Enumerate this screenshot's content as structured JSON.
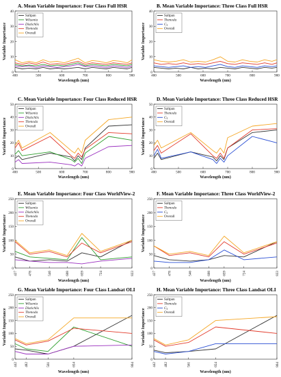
{
  "figure": {
    "panels": [
      {
        "letter": "A.",
        "title": "Mean Variable Importance: Four Class Full HSR"
      },
      {
        "letter": "B.",
        "title": "Mean Variable Importance: Three Class Full HSR"
      },
      {
        "letter": "C.",
        "title": "Mean Variable Importance: Four Class Reduced HSR"
      },
      {
        "letter": "D.",
        "title": "Mean Variable Importance: Three Class Reduced HSR"
      },
      {
        "letter": "E.",
        "title": "Mean Variable Importance: Four Class WorldView-2"
      },
      {
        "letter": "F.",
        "title": "Mean Variable Importance: Three Class WorldView-2"
      },
      {
        "letter": "G.",
        "title": "Mean Variable Importance: Four Class Landsat OLI"
      },
      {
        "letter": "H.",
        "title": "Mean Variable Importance: Three Class Landsat OLI"
      }
    ],
    "series_colors": {
      "Saltpan": "#333333",
      "Wilsonia": "#2e9e2e",
      "Distichlis": "#9a2fbf",
      "Thenoda": "#e23a2a",
      "C3": "#2a4fd4",
      "Overall": "#f5a623"
    },
    "italic_series": [
      "Wilsonia",
      "Distichlis",
      "Thenoda"
    ]
  },
  "chart_data": [
    {
      "type": "line",
      "title": "Mean Variable Importance: Four Class Full HSR",
      "xlabel": "Wavelength (nm)",
      "ylabel": "Variable Importance",
      "xlim": [
        400,
        900
      ],
      "ylim": [
        0,
        40
      ],
      "xticks": [
        400,
        500,
        600,
        700,
        800,
        900
      ],
      "yticks": [
        0,
        10,
        20,
        30,
        40
      ],
      "legend": "top-left",
      "x": [
        400,
        430,
        460,
        490,
        520,
        550,
        580,
        610,
        640,
        670,
        700,
        730,
        760,
        790,
        820,
        850,
        880,
        900
      ],
      "series": [
        {
          "name": "Saltpan",
          "values": [
            3,
            2,
            2.5,
            2,
            3,
            2,
            2.5,
            2,
            2.5,
            3,
            2,
            3,
            2.5,
            2,
            3,
            2.5,
            2,
            3
          ]
        },
        {
          "name": "Wilsonia",
          "values": [
            5,
            4,
            4.5,
            4,
            5,
            4,
            4.5,
            4,
            5,
            6,
            4,
            5,
            4.5,
            4,
            5,
            4.5,
            4,
            5
          ]
        },
        {
          "name": "Distichlis",
          "values": [
            4,
            3.5,
            4,
            3,
            4,
            3.5,
            3,
            3.5,
            4,
            5,
            3.5,
            4,
            3.5,
            3,
            4,
            3.5,
            3,
            4
          ]
        },
        {
          "name": "Thenoda",
          "values": [
            6,
            5,
            6,
            5,
            6.5,
            5,
            5.5,
            5,
            6,
            7,
            5,
            6,
            5.5,
            5,
            6,
            5.5,
            5,
            6
          ]
        },
        {
          "name": "Overall",
          "values": [
            8,
            6,
            7,
            6,
            8,
            6.5,
            7,
            6,
            7.5,
            9,
            6,
            7.5,
            7,
            6,
            7.5,
            7,
            6,
            8
          ]
        }
      ]
    },
    {
      "type": "line",
      "title": "Mean Variable Importance: Three Class Full HSR",
      "xlabel": "Wavelength (nm)",
      "ylabel": "Variable Importance",
      "xlim": [
        400,
        900
      ],
      "ylim": [
        0,
        40
      ],
      "xticks": [
        400,
        500,
        600,
        700,
        800,
        900
      ],
      "yticks": [
        0,
        10,
        20,
        30,
        40
      ],
      "legend": "top-left",
      "x": [
        400,
        430,
        460,
        490,
        520,
        550,
        580,
        610,
        640,
        670,
        700,
        730,
        760,
        790,
        820,
        850,
        880,
        900
      ],
      "series": [
        {
          "name": "Saltpan",
          "values": [
            3,
            2.5,
            2,
            2.5,
            2,
            3,
            2,
            2.5,
            2,
            3,
            2.5,
            2,
            3,
            2.5,
            2,
            3,
            2.5,
            3
          ]
        },
        {
          "name": "Thenoda",
          "values": [
            6,
            5,
            5.5,
            5,
            6,
            5,
            5.5,
            5,
            6,
            7,
            5.5,
            5,
            6,
            5.5,
            5,
            6,
            5,
            6
          ]
        },
        {
          "name": "C3",
          "values": [
            4,
            3.5,
            3,
            3.5,
            4,
            3,
            3.5,
            3,
            4,
            5,
            3.5,
            3,
            4,
            3.5,
            3,
            4,
            3.5,
            4
          ]
        },
        {
          "name": "Overall",
          "values": [
            8,
            7,
            6.5,
            7,
            8,
            6.5,
            7,
            6.5,
            8,
            10,
            7,
            6.5,
            8,
            7,
            6.5,
            8,
            7,
            8
          ]
        }
      ]
    },
    {
      "type": "line",
      "title": "Mean Variable Importance: Four Class Reduced HSR",
      "xlabel": "Wavelength (nm)",
      "ylabel": "Variable Importance",
      "xlim": [
        400,
        900
      ],
      "ylim": [
        0,
        50
      ],
      "xticks": [
        400,
        500,
        600,
        700,
        800,
        900
      ],
      "yticks": [
        0,
        10,
        20,
        30,
        40,
        50
      ],
      "legend": "top-left",
      "x": [
        400,
        415,
        430,
        550,
        640,
        655,
        670,
        685,
        700,
        800,
        900
      ],
      "series": [
        {
          "name": "Saltpan",
          "values": [
            8,
            10,
            7,
            12,
            9,
            6,
            10,
            7,
            16,
            33,
            34
          ]
        },
        {
          "name": "Wilsonia",
          "values": [
            11,
            14,
            10,
            13,
            7,
            5,
            8,
            4,
            12,
            25,
            22
          ]
        },
        {
          "name": "Distichlis",
          "values": [
            5,
            7,
            4,
            5,
            3,
            2,
            4,
            2,
            8,
            17,
            18
          ]
        },
        {
          "name": "Thenoda",
          "values": [
            16,
            20,
            14,
            25,
            10,
            8,
            12,
            9,
            15,
            28,
            27
          ]
        },
        {
          "name": "Overall",
          "values": [
            18,
            22,
            16,
            28,
            14,
            12,
            16,
            12,
            22,
            38,
            40
          ]
        }
      ]
    },
    {
      "type": "line",
      "title": "Mean Variable Importance: Three Class Reduced HSR",
      "xlabel": "Wavelength (nm)",
      "ylabel": "Variable Importance",
      "xlim": [
        400,
        900
      ],
      "ylim": [
        0,
        50
      ],
      "xticks": [
        400,
        500,
        600,
        700,
        800,
        900
      ],
      "yticks": [
        0,
        10,
        20,
        30,
        40,
        50
      ],
      "legend": "top-left",
      "x": [
        400,
        415,
        430,
        550,
        640,
        655,
        670,
        685,
        700,
        800,
        900
      ],
      "series": [
        {
          "name": "Saltpan",
          "values": [
            8,
            12,
            7,
            13,
            9,
            6,
            10,
            7,
            16,
            28,
            30
          ]
        },
        {
          "name": "Thenoda",
          "values": [
            14,
            18,
            12,
            27,
            10,
            8,
            12,
            8,
            16,
            30,
            31
          ]
        },
        {
          "name": "C3",
          "values": [
            10,
            15,
            8,
            13,
            7,
            4,
            8,
            5,
            10,
            25,
            20
          ]
        },
        {
          "name": "Overall",
          "values": [
            18,
            22,
            16,
            28,
            14,
            12,
            16,
            12,
            24,
            33,
            35
          ]
        }
      ]
    },
    {
      "type": "line",
      "title": "Mean Variable Importance: Four Class WorldView-2",
      "xlabel": "Wavelength (nm)",
      "ylabel": "Variable Importance",
      "xlim": [
        427,
        833
      ],
      "ylim": [
        0,
        250
      ],
      "xticks": [
        427,
        478,
        546,
        608,
        659,
        724,
        833
      ],
      "yticks": [
        0,
        50,
        100,
        150,
        200,
        250
      ],
      "legend": "top-left",
      "x": [
        427,
        478,
        546,
        608,
        659,
        724,
        833
      ],
      "series": [
        {
          "name": "Saltpan",
          "values": [
            40,
            25,
            30,
            25,
            55,
            40,
            100
          ]
        },
        {
          "name": "Wilsonia",
          "values": [
            60,
            40,
            35,
            30,
            110,
            30,
            40
          ]
        },
        {
          "name": "Distichlis",
          "values": [
            30,
            25,
            20,
            20,
            15,
            25,
            35
          ]
        },
        {
          "name": "Thenoda",
          "values": [
            95,
            50,
            60,
            40,
            90,
            55,
            95
          ]
        },
        {
          "name": "Overall",
          "values": [
            100,
            55,
            65,
            45,
            125,
            60,
            100
          ]
        }
      ]
    },
    {
      "type": "line",
      "title": "Mean Variable Importance: Three Class WorldView-2",
      "xlabel": "Wavelength (nm)",
      "ylabel": "Variable Importance",
      "xlim": [
        427,
        833
      ],
      "ylim": [
        0,
        250
      ],
      "xticks": [
        427,
        478,
        546,
        608,
        659,
        724,
        833
      ],
      "yticks": [
        0,
        50,
        100,
        150,
        200,
        250
      ],
      "legend": "top-left",
      "x": [
        427,
        478,
        546,
        608,
        659,
        724,
        833
      ],
      "series": [
        {
          "name": "Saltpan",
          "values": [
            45,
            30,
            25,
            30,
            45,
            40,
            95
          ]
        },
        {
          "name": "Thenoda",
          "values": [
            80,
            45,
            55,
            40,
            95,
            50,
            90
          ]
        },
        {
          "name": "C3",
          "values": [
            25,
            20,
            20,
            30,
            65,
            30,
            40
          ]
        },
        {
          "name": "Overall",
          "values": [
            80,
            50,
            60,
            45,
            115,
            55,
            95
          ]
        }
      ]
    },
    {
      "type": "line",
      "title": "Mean Variable Importance: Four Class Landsat OLI",
      "xlabel": "Wavelength (nm)",
      "ylabel": "Variable Importance",
      "xlim": [
        442,
        864
      ],
      "ylim": [
        0,
        250
      ],
      "xticks": [
        442,
        482,
        561,
        654,
        864
      ],
      "yticks": [
        0,
        50,
        100,
        150,
        200,
        250
      ],
      "legend": "top-left",
      "x": [
        442,
        482,
        561,
        654,
        864
      ],
      "series": [
        {
          "name": "Saltpan",
          "values": [
            40,
            35,
            20,
            50,
            170
          ]
        },
        {
          "name": "Wilsonia",
          "values": [
            60,
            40,
            30,
            125,
            50
          ]
        },
        {
          "name": "Distichlis",
          "values": [
            30,
            20,
            20,
            50,
            55
          ]
        },
        {
          "name": "Thenoda",
          "values": [
            75,
            55,
            70,
            120,
            100
          ]
        },
        {
          "name": "Overall",
          "values": [
            80,
            60,
            75,
            160,
            160
          ]
        }
      ]
    },
    {
      "type": "line",
      "title": "Mean Variable Importance: Three Class Landsat OLI",
      "xlabel": "Wavelength (nm)",
      "ylabel": "Variable Importance",
      "xlim": [
        442,
        864
      ],
      "ylim": [
        0,
        250
      ],
      "xticks": [
        442,
        482,
        561,
        654,
        864
      ],
      "yticks": [
        0,
        50,
        100,
        150,
        200,
        250
      ],
      "legend": "top-left",
      "x": [
        442,
        482,
        561,
        654,
        864
      ],
      "series": [
        {
          "name": "Saltpan",
          "values": [
            35,
            25,
            30,
            40,
            170
          ]
        },
        {
          "name": "Thenoda",
          "values": [
            75,
            50,
            65,
            125,
            100
          ]
        },
        {
          "name": "C3",
          "values": [
            30,
            20,
            30,
            60,
            60
          ]
        },
        {
          "name": "Overall",
          "values": [
            80,
            55,
            75,
            150,
            165
          ]
        }
      ]
    }
  ]
}
